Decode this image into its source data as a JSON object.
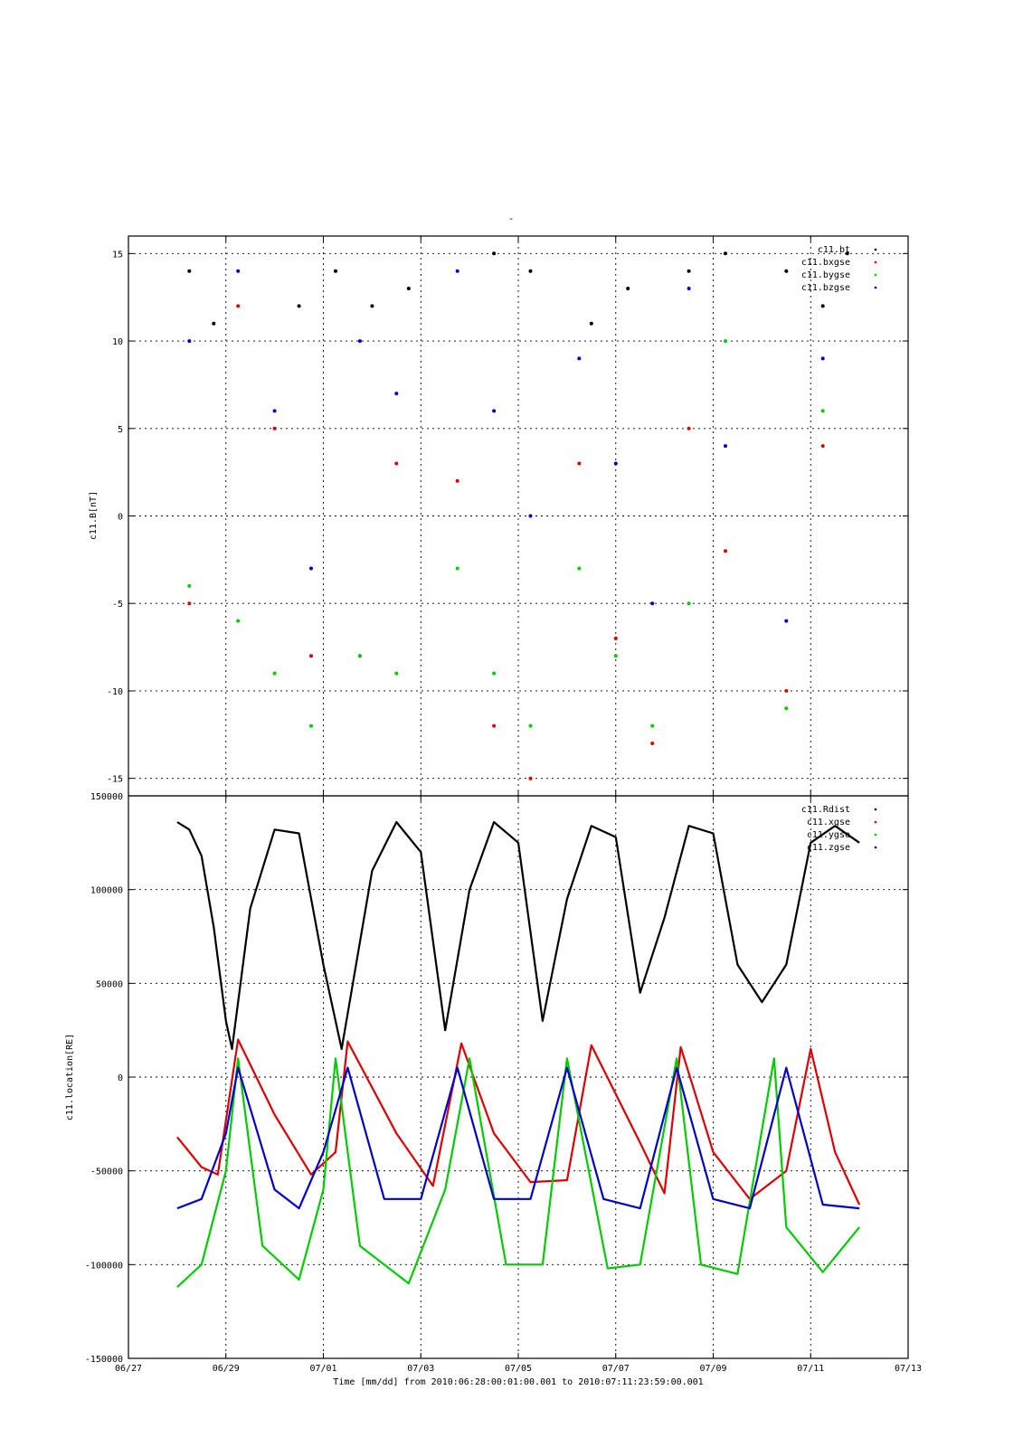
{
  "figure": {
    "title": "-",
    "xlabel_text": "Time [mm/dd]  from 2010:06:28:00:01:00.001  to  2010:07:11:23:59:00.001"
  },
  "colors": {
    "black": "#000000",
    "red": "#dd0000",
    "green": "#00cc00",
    "blue": "#0000cc"
  },
  "chart_data": [
    {
      "type": "scatter",
      "ylabel": "c11.B[nT]",
      "ylim": [
        -16,
        16
      ],
      "xlim": [
        "2010-06-27",
        "2010-07-13"
      ],
      "yticks": [
        -15,
        -10,
        -5,
        0,
        5,
        10,
        15
      ],
      "xticks": [
        "06/27",
        "06/29",
        "07/01",
        "07/03",
        "07/05",
        "07/07",
        "07/09",
        "07/11",
        "07/13"
      ],
      "grid": true,
      "legend_position": "top-right",
      "series": [
        {
          "name": "c11.bt",
          "color": "#000000",
          "x": [
            "2010-06-28T06:00",
            "2010-06-28T18:00",
            "2010-06-30T12:00",
            "2010-07-01T06:00",
            "2010-07-02T00:00",
            "2010-07-02T18:00",
            "2010-07-04T12:00",
            "2010-07-05T06:00",
            "2010-07-06T12:00",
            "2010-07-07T06:00",
            "2010-07-08T12:00",
            "2010-07-09T06:00",
            "2010-07-10T12:00",
            "2010-07-11T06:00",
            "2010-07-11T18:00"
          ],
          "y": [
            14,
            11,
            12,
            14,
            12,
            13,
            15,
            14,
            11,
            13,
            14,
            15,
            14,
            12,
            15
          ]
        },
        {
          "name": "c11.bxgse",
          "color": "#dd0000",
          "x": [
            "2010-06-28T06:00",
            "2010-06-29T06:00",
            "2010-06-30T00:00",
            "2010-06-30T18:00",
            "2010-07-01T18:00",
            "2010-07-02T12:00",
            "2010-07-03T18:00",
            "2010-07-04T12:00",
            "2010-07-05T06:00",
            "2010-07-06T06:00",
            "2010-07-07T00:00",
            "2010-07-07T18:00",
            "2010-07-08T12:00",
            "2010-07-09T06:00",
            "2010-07-10T12:00",
            "2010-07-11T06:00"
          ],
          "y": [
            -5,
            12,
            5,
            -8,
            -8,
            3,
            2,
            -12,
            -15,
            3,
            -7,
            -13,
            5,
            -2,
            -10,
            4
          ]
        },
        {
          "name": "c11.bygse",
          "color": "#00cc00",
          "x": [
            "2010-06-28T06:00",
            "2010-06-29T06:00",
            "2010-06-30T00:00",
            "2010-06-30T18:00",
            "2010-07-01T18:00",
            "2010-07-02T12:00",
            "2010-07-03T18:00",
            "2010-07-04T12:00",
            "2010-07-05T06:00",
            "2010-07-06T06:00",
            "2010-07-07T00:00",
            "2010-07-07T18:00",
            "2010-07-08T12:00",
            "2010-07-09T06:00",
            "2010-07-10T12:00",
            "2010-07-11T06:00"
          ],
          "y": [
            -4,
            -6,
            -9,
            -12,
            -8,
            -9,
            -3,
            -9,
            -12,
            -3,
            -8,
            -12,
            -5,
            10,
            -11,
            6
          ]
        },
        {
          "name": "c11.bzgse",
          "color": "#0000cc",
          "x": [
            "2010-06-28T06:00",
            "2010-06-29T06:00",
            "2010-06-30T00:00",
            "2010-06-30T18:00",
            "2010-07-01T18:00",
            "2010-07-02T12:00",
            "2010-07-03T18:00",
            "2010-07-04T12:00",
            "2010-07-05T06:00",
            "2010-07-06T06:00",
            "2010-07-07T00:00",
            "2010-07-07T18:00",
            "2010-07-08T12:00",
            "2010-07-09T06:00",
            "2010-07-10T12:00",
            "2010-07-11T06:00"
          ],
          "y": [
            10,
            14,
            6,
            -3,
            10,
            7,
            14,
            6,
            0,
            9,
            3,
            -5,
            13,
            4,
            -6,
            9
          ]
        }
      ]
    },
    {
      "type": "line",
      "ylabel": "c11.location[RE]",
      "ylim": [
        -150000,
        150000
      ],
      "xlim": [
        "2010-06-27",
        "2010-07-13"
      ],
      "yticks": [
        -150000,
        -100000,
        -50000,
        0,
        50000,
        100000,
        150000
      ],
      "xticks": [
        "06/27",
        "06/29",
        "07/01",
        "07/03",
        "07/05",
        "07/07",
        "07/09",
        "07/11",
        "07/13"
      ],
      "grid": true,
      "legend_position": "top-right",
      "series": [
        {
          "name": "c11.Rdist",
          "color": "#000000",
          "x": [
            "2010-06-28T00:00",
            "2010-06-28T06:00",
            "2010-06-28T12:00",
            "2010-06-28T18:00",
            "2010-06-29T00:00",
            "2010-06-29T03:00",
            "2010-06-29T12:00",
            "2010-06-30T00:00",
            "2010-06-30T12:00",
            "2010-07-01T00:00",
            "2010-07-01T09:00",
            "2010-07-02T00:00",
            "2010-07-02T12:00",
            "2010-07-03T00:00",
            "2010-07-03T12:00",
            "2010-07-04T00:00",
            "2010-07-04T12:00",
            "2010-07-05T00:00",
            "2010-07-05T12:00",
            "2010-07-06T00:00",
            "2010-07-06T12:00",
            "2010-07-07T00:00",
            "2010-07-07T12:00",
            "2010-07-08T00:00",
            "2010-07-08T12:00",
            "2010-07-09T00:00",
            "2010-07-09T12:00",
            "2010-07-10T00:00",
            "2010-07-10T12:00",
            "2010-07-11T00:00",
            "2010-07-11T12:00",
            "2010-07-12T00:00"
          ],
          "y": [
            136000,
            132000,
            118000,
            80000,
            30000,
            15000,
            90000,
            132000,
            130000,
            60000,
            15000,
            110000,
            136000,
            120000,
            25000,
            100000,
            136000,
            125000,
            30000,
            95000,
            134000,
            128000,
            45000,
            85000,
            134000,
            130000,
            60000,
            40000,
            60000,
            125000,
            134000,
            125000
          ]
        },
        {
          "name": "c11.xgse",
          "color": "#dd0000",
          "x": [
            "2010-06-28T00:00",
            "2010-06-28T12:00",
            "2010-06-28T20:00",
            "2010-06-29T06:00",
            "2010-06-30T00:00",
            "2010-06-30T18:00",
            "2010-07-01T06:00",
            "2010-07-01T12:00",
            "2010-07-02T12:00",
            "2010-07-03T06:00",
            "2010-07-03T20:00",
            "2010-07-04T12:00",
            "2010-07-05T06:00",
            "2010-07-06T00:00",
            "2010-07-06T12:00",
            "2010-07-07T12:00",
            "2010-07-08T00:00",
            "2010-07-08T08:00",
            "2010-07-09T00:00",
            "2010-07-09T18:00",
            "2010-07-10T12:00",
            "2010-07-11T00:00",
            "2010-07-11T12:00",
            "2010-07-12T00:00"
          ],
          "y": [
            -32000,
            -48000,
            -52000,
            20000,
            -20000,
            -52000,
            -40000,
            19000,
            -30000,
            -58000,
            18000,
            -30000,
            -56000,
            -55000,
            17000,
            -35000,
            -62000,
            16000,
            -40000,
            -65000,
            -50000,
            15000,
            -40000,
            -68000
          ]
        },
        {
          "name": "c11.ygse",
          "color": "#00cc00",
          "x": [
            "2010-06-28T00:00",
            "2010-06-28T12:00",
            "2010-06-29T00:00",
            "2010-06-29T06:00",
            "2010-06-29T18:00",
            "2010-06-30T12:00",
            "2010-07-01T00:00",
            "2010-07-01T06:00",
            "2010-07-01T18:00",
            "2010-07-02T18:00",
            "2010-07-03T12:00",
            "2010-07-04T00:00",
            "2010-07-04T18:00",
            "2010-07-05T12:00",
            "2010-07-06T00:00",
            "2010-07-06T20:00",
            "2010-07-07T12:00",
            "2010-07-08T06:00",
            "2010-07-08T18:00",
            "2010-07-09T12:00",
            "2010-07-10T06:00",
            "2010-07-10T12:00",
            "2010-07-11T06:00",
            "2010-07-12T00:00"
          ],
          "y": [
            -112000,
            -100000,
            -50000,
            10000,
            -90000,
            -108000,
            -60000,
            10000,
            -90000,
            -110000,
            -60000,
            10000,
            -100000,
            -100000,
            10000,
            -102000,
            -100000,
            10000,
            -100000,
            -105000,
            10000,
            -80000,
            -104000,
            -80000
          ]
        },
        {
          "name": "c11.zgse",
          "color": "#0000cc",
          "x": [
            "2010-06-28T00:00",
            "2010-06-28T12:00",
            "2010-06-29T00:00",
            "2010-06-29T06:00",
            "2010-06-30T00:00",
            "2010-06-30T12:00",
            "2010-07-01T00:00",
            "2010-07-01T12:00",
            "2010-07-02T06:00",
            "2010-07-03T00:00",
            "2010-07-03T18:00",
            "2010-07-04T12:00",
            "2010-07-05T06:00",
            "2010-07-06T00:00",
            "2010-07-06T18:00",
            "2010-07-07T12:00",
            "2010-07-08T06:00",
            "2010-07-09T00:00",
            "2010-07-09T18:00",
            "2010-07-10T12:00",
            "2010-07-11T06:00",
            "2010-07-12T00:00"
          ],
          "y": [
            -70000,
            -65000,
            -30000,
            5000,
            -60000,
            -70000,
            -40000,
            5000,
            -65000,
            -65000,
            5000,
            -65000,
            -65000,
            5000,
            -65000,
            -70000,
            5000,
            -65000,
            -70000,
            5000,
            -68000,
            -70000
          ]
        }
      ]
    }
  ]
}
